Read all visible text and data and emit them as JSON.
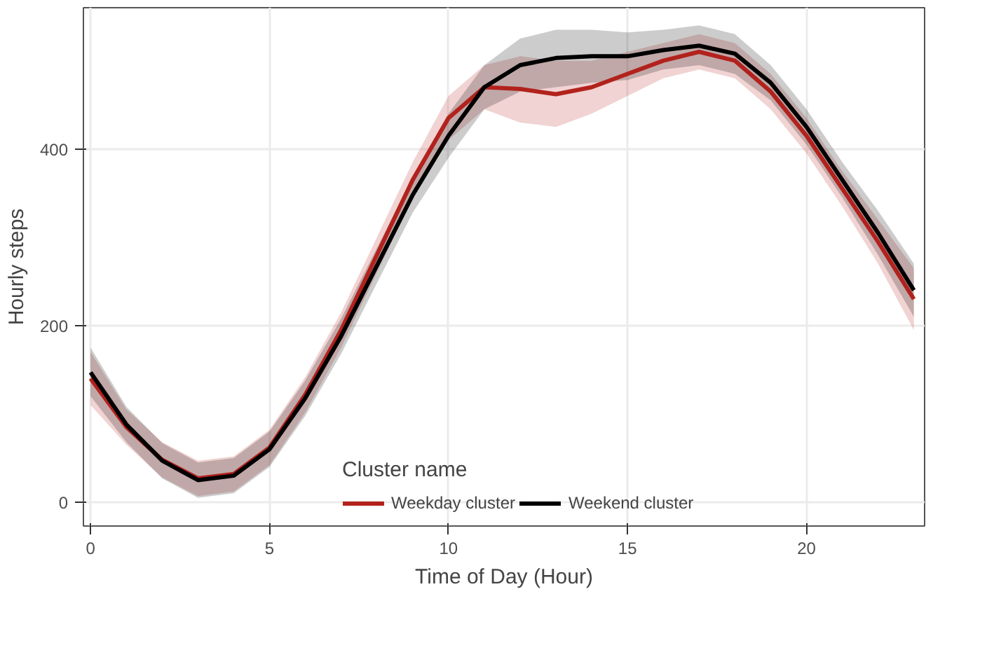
{
  "chart_data": {
    "type": "line",
    "xlabel": "Time of Day (Hour)",
    "ylabel": "Hourly steps",
    "legend_title": "Cluster name",
    "x": [
      0,
      1,
      2,
      3,
      4,
      5,
      6,
      7,
      8,
      9,
      10,
      11,
      12,
      13,
      14,
      15,
      16,
      17,
      18,
      19,
      20,
      21,
      22,
      23
    ],
    "series": [
      {
        "name": "Weekday cluster",
        "color": "#b2221d",
        "values": [
          140,
          85,
          48,
          27,
          32,
          62,
          122,
          195,
          280,
          365,
          435,
          470,
          468,
          462,
          470,
          485,
          500,
          510,
          500,
          465,
          415,
          355,
          295,
          230
        ],
        "lower": [
          110,
          65,
          28,
          7,
          12,
          42,
          102,
          175,
          260,
          345,
          410,
          445,
          430,
          425,
          440,
          460,
          480,
          490,
          480,
          445,
          395,
          335,
          270,
          195
        ],
        "upper": [
          170,
          105,
          68,
          47,
          52,
          82,
          142,
          215,
          300,
          385,
          460,
          495,
          505,
          500,
          500,
          510,
          520,
          530,
          520,
          485,
          435,
          375,
          320,
          265
        ]
      },
      {
        "name": "Weekend cluster",
        "color": "#000000",
        "values": [
          147,
          88,
          47,
          25,
          30,
          60,
          118,
          188,
          268,
          348,
          415,
          470,
          495,
          503,
          505,
          505,
          512,
          517,
          508,
          475,
          425,
          365,
          305,
          240
        ],
        "lower": [
          120,
          68,
          27,
          5,
          10,
          40,
          98,
          168,
          248,
          328,
          390,
          445,
          465,
          470,
          475,
          478,
          490,
          495,
          485,
          455,
          405,
          345,
          280,
          210
        ],
        "upper": [
          175,
          108,
          67,
          45,
          50,
          80,
          138,
          208,
          288,
          368,
          440,
          495,
          525,
          535,
          535,
          532,
          535,
          540,
          530,
          495,
          445,
          385,
          330,
          270
        ]
      }
    ],
    "xlim": [
      -0.2,
      23.3
    ],
    "ylim": [
      -27,
      560
    ],
    "xticks": [
      0,
      5,
      10,
      15,
      20
    ],
    "yticks": [
      0,
      200,
      400
    ],
    "grid": true,
    "legend": "bottom",
    "line_style": "solid"
  }
}
